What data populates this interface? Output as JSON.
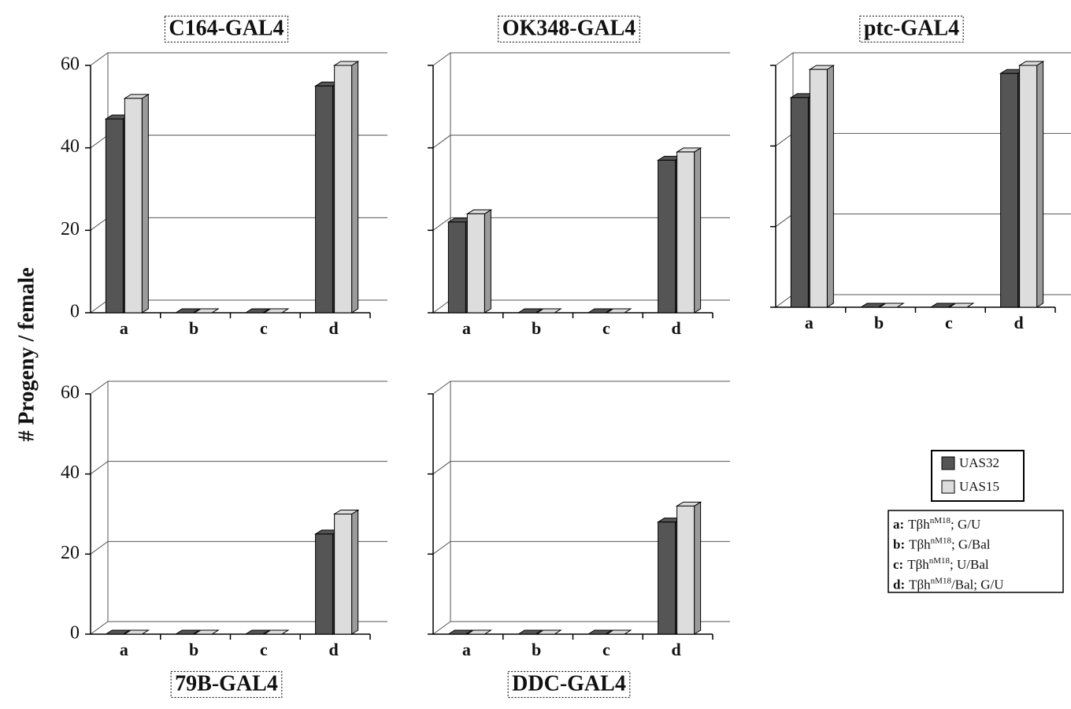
{
  "y_label": "# Progeny / female",
  "legend_key": [
    {
      "letter": "a:",
      "prefix": "Tβh",
      "sup": "nM18",
      "suffix": "; G/U"
    },
    {
      "letter": "b:",
      "prefix": "Tβh",
      "sup": "nM18",
      "suffix": "; G/Bal"
    },
    {
      "letter": "c:",
      "prefix": "Tβh",
      "sup": "nM18",
      "suffix": "; U/Bal"
    },
    {
      "letter": "d:",
      "prefix": "Tβh",
      "sup": "nM18",
      "suffix": "/Bal; G/U"
    }
  ],
  "chart_data": [
    {
      "type": "bar",
      "title": "C164-GAL4",
      "title_position": "top",
      "categories": [
        "a",
        "b",
        "c",
        "d"
      ],
      "series": [
        {
          "name": "UAS32",
          "color": "#555555",
          "values": [
            47,
            0,
            0,
            55
          ]
        },
        {
          "name": "UAS15",
          "color": "#dddddd",
          "values": [
            52,
            0,
            0,
            60
          ]
        }
      ],
      "ylim": [
        0,
        60
      ],
      "yticks": [
        0,
        20,
        40,
        60
      ],
      "ytick_labels": true,
      "grid": true
    },
    {
      "type": "bar",
      "title": "OK348-GAL4",
      "title_position": "top",
      "categories": [
        "a",
        "b",
        "c",
        "d"
      ],
      "series": [
        {
          "name": "UAS32",
          "color": "#555555",
          "values": [
            22,
            0,
            0,
            37
          ]
        },
        {
          "name": "UAS15",
          "color": "#dddddd",
          "values": [
            24,
            0,
            0,
            39
          ]
        }
      ],
      "ylim": [
        0,
        60
      ],
      "yticks": [
        0,
        20,
        40,
        60
      ],
      "ytick_labels": false,
      "grid": true
    },
    {
      "type": "bar",
      "title": "ptc-GAL4",
      "title_position": "top",
      "categories": [
        "a",
        "b",
        "c",
        "d"
      ],
      "series": [
        {
          "name": "UAS32",
          "color": "#555555",
          "values": [
            52,
            0,
            0,
            58
          ]
        },
        {
          "name": "UAS15",
          "color": "#dddddd",
          "values": [
            59,
            0,
            0,
            60
          ]
        }
      ],
      "ylim": [
        0,
        60
      ],
      "yticks": [
        0,
        20,
        40,
        60
      ],
      "ytick_labels": false,
      "grid": true
    },
    {
      "type": "bar",
      "title": "79B-GAL4",
      "title_position": "bottom",
      "categories": [
        "a",
        "b",
        "c",
        "d"
      ],
      "series": [
        {
          "name": "UAS32",
          "color": "#555555",
          "values": [
            0,
            0,
            0,
            25
          ]
        },
        {
          "name": "UAS15",
          "color": "#dddddd",
          "values": [
            0,
            0,
            0,
            30
          ]
        }
      ],
      "ylim": [
        0,
        60
      ],
      "yticks": [
        0,
        20,
        40,
        60
      ],
      "ytick_labels": true,
      "grid": true
    },
    {
      "type": "bar",
      "title": "DDC-GAL4",
      "title_position": "bottom",
      "categories": [
        "a",
        "b",
        "c",
        "d"
      ],
      "series": [
        {
          "name": "UAS32",
          "color": "#555555",
          "values": [
            0,
            0,
            0,
            28
          ]
        },
        {
          "name": "UAS15",
          "color": "#dddddd",
          "values": [
            0,
            0,
            0,
            32
          ]
        }
      ],
      "ylim": [
        0,
        60
      ],
      "yticks": [
        0,
        20,
        40,
        60
      ],
      "ytick_labels": false,
      "grid": true
    }
  ]
}
